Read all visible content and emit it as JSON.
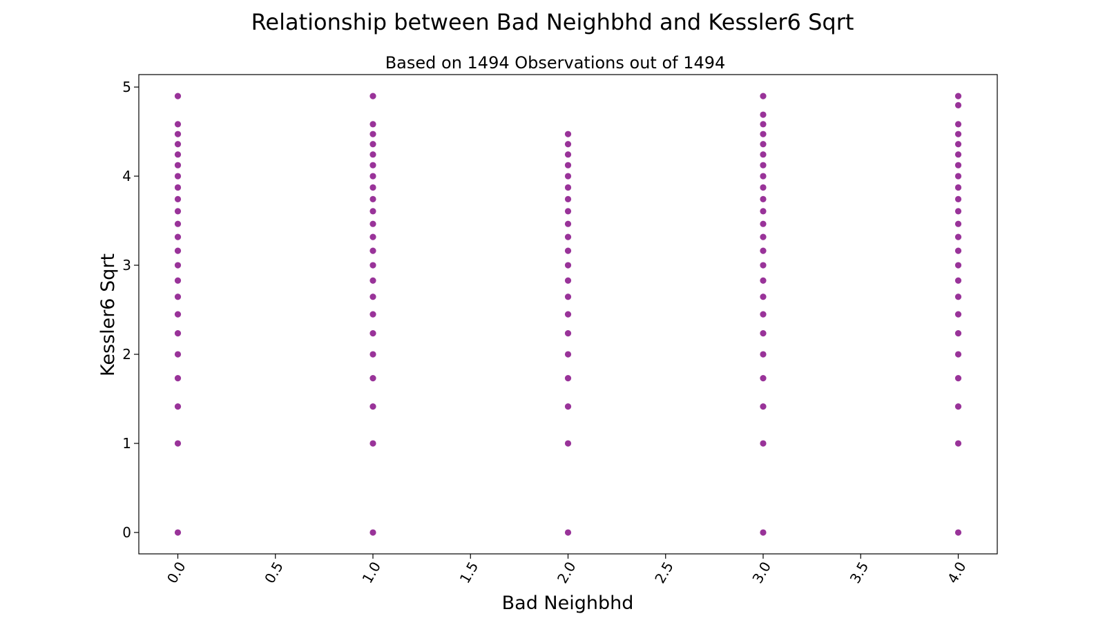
{
  "chart_data": {
    "type": "scatter",
    "title": "Relationship between Bad Neighbhd and Kessler6 Sqrt",
    "subtitle": "Based on 1494 Observations out of 1494",
    "xlabel": "Bad Neighbhd",
    "ylabel": "Kessler6 Sqrt",
    "xlim": [
      -0.2,
      4.2
    ],
    "ylim": [
      -0.24,
      5.14
    ],
    "x_ticks": [
      "0.0",
      "0.5",
      "1.0",
      "1.5",
      "2.0",
      "2.5",
      "3.0",
      "3.5",
      "4.0"
    ],
    "y_ticks": [
      "0",
      "1",
      "2",
      "3",
      "4",
      "5"
    ],
    "marker_color": "#800080",
    "grid": false,
    "series": [
      {
        "x": 0,
        "y": [
          0,
          1,
          1.414,
          1.732,
          2,
          2.236,
          2.449,
          2.646,
          2.828,
          3,
          3.162,
          3.317,
          3.464,
          3.606,
          3.742,
          3.873,
          4,
          4.123,
          4.243,
          4.359,
          4.472,
          4.583,
          4.899
        ]
      },
      {
        "x": 1,
        "y": [
          0,
          1,
          1.414,
          1.732,
          2,
          2.236,
          2.449,
          2.646,
          2.828,
          3,
          3.162,
          3.317,
          3.464,
          3.606,
          3.742,
          3.873,
          4,
          4.123,
          4.243,
          4.359,
          4.472,
          4.583,
          4.899
        ]
      },
      {
        "x": 2,
        "y": [
          0,
          1,
          1.414,
          1.732,
          2,
          2.236,
          2.449,
          2.646,
          2.828,
          3,
          3.162,
          3.317,
          3.464,
          3.606,
          3.742,
          3.873,
          4,
          4.123,
          4.243,
          4.359,
          4.472
        ]
      },
      {
        "x": 3,
        "y": [
          0,
          1,
          1.414,
          1.732,
          2,
          2.236,
          2.449,
          2.646,
          2.828,
          3,
          3.162,
          3.317,
          3.464,
          3.606,
          3.742,
          3.873,
          4,
          4.123,
          4.243,
          4.359,
          4.472,
          4.583,
          4.69,
          4.899
        ]
      },
      {
        "x": 4,
        "y": [
          0,
          1,
          1.414,
          1.732,
          2,
          2.236,
          2.449,
          2.646,
          2.828,
          3,
          3.162,
          3.317,
          3.464,
          3.606,
          3.742,
          3.873,
          4,
          4.123,
          4.243,
          4.359,
          4.472,
          4.583,
          4.796,
          4.899
        ]
      }
    ]
  }
}
